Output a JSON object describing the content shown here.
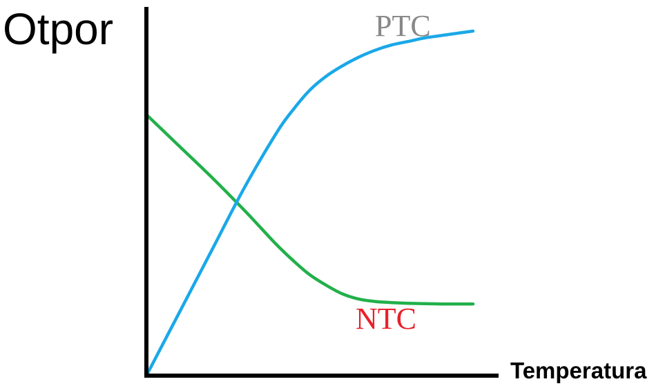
{
  "chart_data": {
    "type": "line",
    "xlabel": "Temperatura",
    "ylabel": "Otpor",
    "title": "",
    "xlim": [
      0,
      100
    ],
    "ylim": [
      0,
      100
    ],
    "grid": false,
    "axis_ticks": false,
    "series": [
      {
        "name": "PTC",
        "color": "#1aa8e8",
        "label_color": "#888888",
        "x": [
          0,
          10,
          20,
          30,
          40,
          45,
          50,
          55,
          60,
          65,
          70,
          75,
          80,
          85,
          90,
          100
        ],
        "y": [
          0,
          18,
          36,
          54,
          70,
          76.5,
          82,
          86,
          89,
          91.5,
          93.5,
          95,
          96,
          97,
          97.7,
          99
        ]
      },
      {
        "name": "NTC",
        "color": "#22b04a",
        "label_color": "#e8202a",
        "x": [
          0,
          10,
          20,
          30,
          35,
          40,
          45,
          50,
          55,
          60,
          65,
          70,
          75,
          80,
          90,
          100
        ],
        "y": [
          75,
          66,
          57,
          47.5,
          42.5,
          37.5,
          33,
          29,
          26,
          23.5,
          22,
          21.3,
          21,
          20.8,
          20.6,
          20.6
        ]
      }
    ]
  }
}
